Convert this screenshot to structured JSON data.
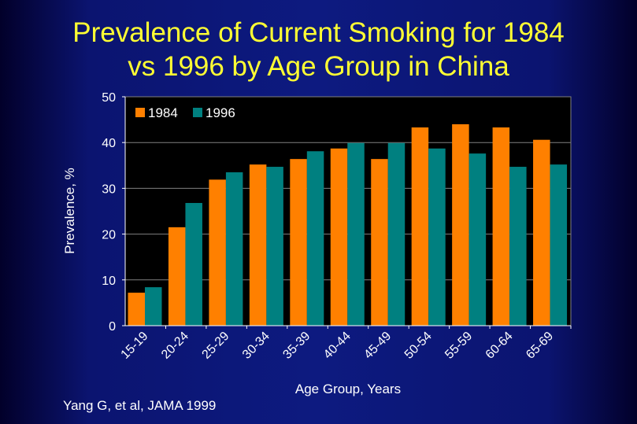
{
  "slide": {
    "title_line1": "Prevalence of Current Smoking for 1984",
    "title_line2": "vs 1996 by Age Group in China",
    "citation": "Yang G, et al, JAMA 1999"
  },
  "colors": {
    "background": "#0d1a80",
    "title": "#ffff33",
    "plot_area": "#000000",
    "series_1984": "#ff8000",
    "series_1996": "#008080"
  },
  "chart_data": {
    "type": "bar",
    "title": "Prevalence of Current Smoking for 1984 vs 1996 by Age Group in China",
    "xlabel": "Age Group, Years",
    "ylabel": "Prevalence, %",
    "ylim": [
      0,
      50
    ],
    "yticks": [
      0,
      10,
      20,
      30,
      40,
      50
    ],
    "grid": true,
    "legend_position": "top-left",
    "categories": [
      "15-19",
      "20-24",
      "25-29",
      "30-34",
      "35-39",
      "40-44",
      "45-49",
      "50-54",
      "55-59",
      "60-64",
      "65-69"
    ],
    "series": [
      {
        "name": "1984",
        "color": "#ff8000",
        "values": [
          7.2,
          21.5,
          31.9,
          35.2,
          36.4,
          38.7,
          36.4,
          43.3,
          44.0,
          43.3,
          40.6
        ]
      },
      {
        "name": "1996",
        "color": "#008080",
        "values": [
          8.4,
          26.8,
          33.5,
          34.7,
          38.1,
          39.9,
          39.9,
          38.7,
          37.6,
          34.7,
          35.2
        ]
      }
    ]
  }
}
